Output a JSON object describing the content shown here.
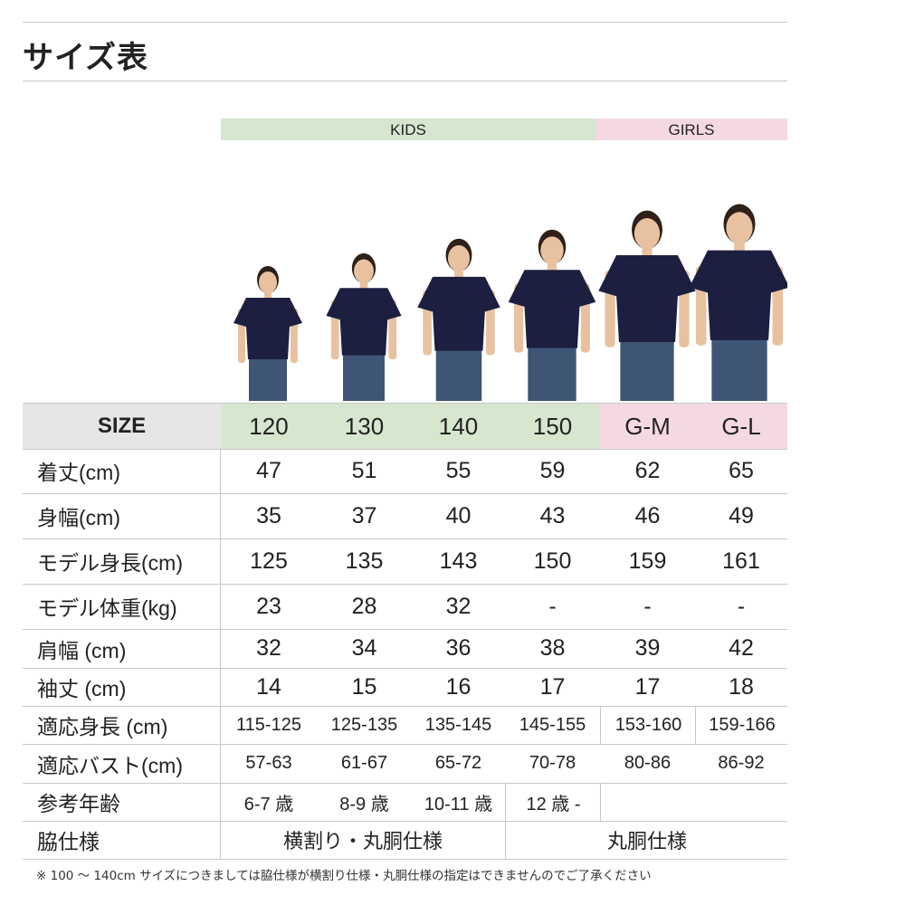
{
  "title": "サイズ表",
  "groups": {
    "kids": "KIDS",
    "girls": "GIRLS"
  },
  "colors": {
    "kids": "#d6e6cf",
    "girls": "#f5d9e2",
    "size_header": "#e6e6e6",
    "shirt": "#1c1f3f",
    "jeans": "#3f5575",
    "skin": "#e8c2a0",
    "hair": "#2e2018"
  },
  "table": {
    "header": {
      "label": "SIZE",
      "sizes": [
        "120",
        "130",
        "140",
        "150",
        "G-M",
        "G-L"
      ]
    },
    "rows": [
      {
        "label": "着丈(cm)",
        "values": [
          "47",
          "51",
          "55",
          "59",
          "62",
          "65"
        ]
      },
      {
        "label": "身幅(cm)",
        "values": [
          "35",
          "37",
          "40",
          "43",
          "46",
          "49"
        ]
      },
      {
        "label": "モデル身長(cm)",
        "values": [
          "125",
          "135",
          "143",
          "150",
          "159",
          "161"
        ]
      },
      {
        "label": "モデル体重(kg)",
        "values": [
          "23",
          "28",
          "32",
          "-",
          "-",
          "-"
        ]
      },
      {
        "label": "肩幅 (cm)",
        "values": [
          "32",
          "34",
          "36",
          "38",
          "39",
          "42"
        ]
      },
      {
        "label": "袖丈 (cm)",
        "values": [
          "14",
          "15",
          "16",
          "17",
          "17",
          "18"
        ]
      },
      {
        "label": "適応身長 (cm)",
        "values": [
          "115-125",
          "125-135",
          "135-145",
          "145-155",
          "153-160",
          "159-166"
        ]
      },
      {
        "label": "適応バスト(cm)",
        "values": [
          "57-63",
          "61-67",
          "65-72",
          "70-78",
          "80-86",
          "86-92"
        ]
      },
      {
        "label": "参考年齢",
        "values": [
          "6-7 歳",
          "8-9 歳",
          "10-11 歳",
          "12 歳 -",
          "",
          ""
        ]
      }
    ],
    "side_spec": {
      "label": "脇仕様",
      "kids_value": "横割り・丸胴仕様",
      "girls_value": "丸胴仕様"
    }
  },
  "footnote": "※ 100 ～ 140cm サイズにつきましては脇仕様が横割り仕様・丸胴仕様の指定はできませんのでご了承ください"
}
